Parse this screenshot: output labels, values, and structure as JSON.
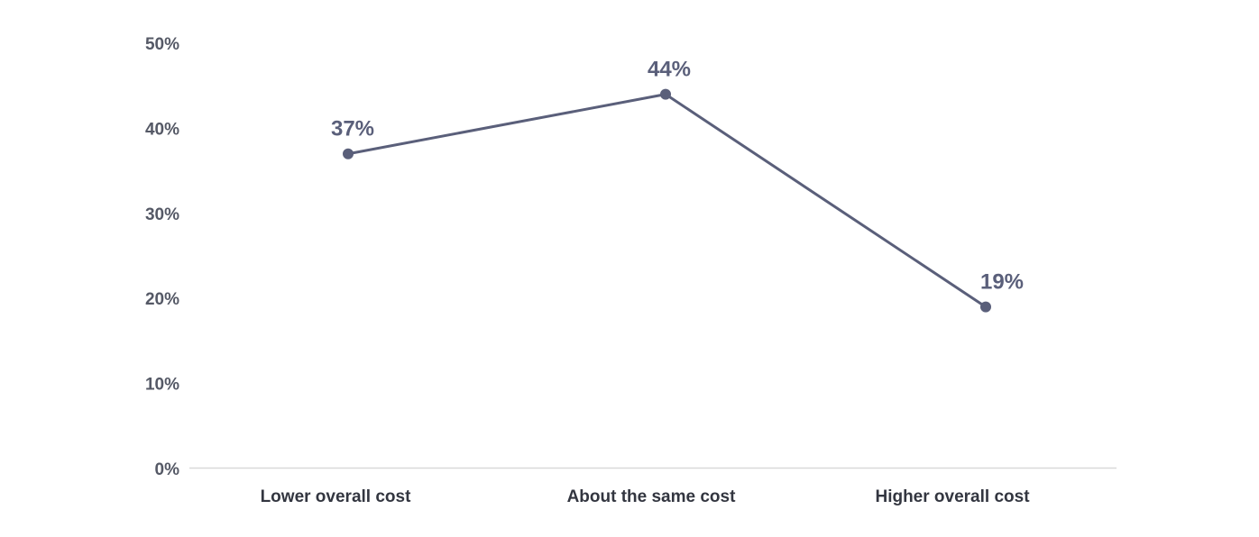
{
  "chart_data": {
    "type": "line",
    "categories": [
      "Lower overall cost",
      "About the same cost",
      "Higher overall cost"
    ],
    "series": [
      {
        "values": [
          37,
          44,
          19
        ],
        "labels": [
          "37%",
          "44%",
          "19%"
        ],
        "color": "#5a5f7a"
      }
    ],
    "ylim": [
      0,
      50
    ],
    "yticks": [
      0,
      10,
      20,
      30,
      40,
      50
    ],
    "ytick_labels": [
      "0%",
      "10%",
      "20%",
      "30%",
      "40%",
      "50%"
    ],
    "title": "",
    "xlabel": "",
    "ylabel": "",
    "grid": false,
    "baseline_color": "#d9d9d9",
    "legend": "none"
  }
}
